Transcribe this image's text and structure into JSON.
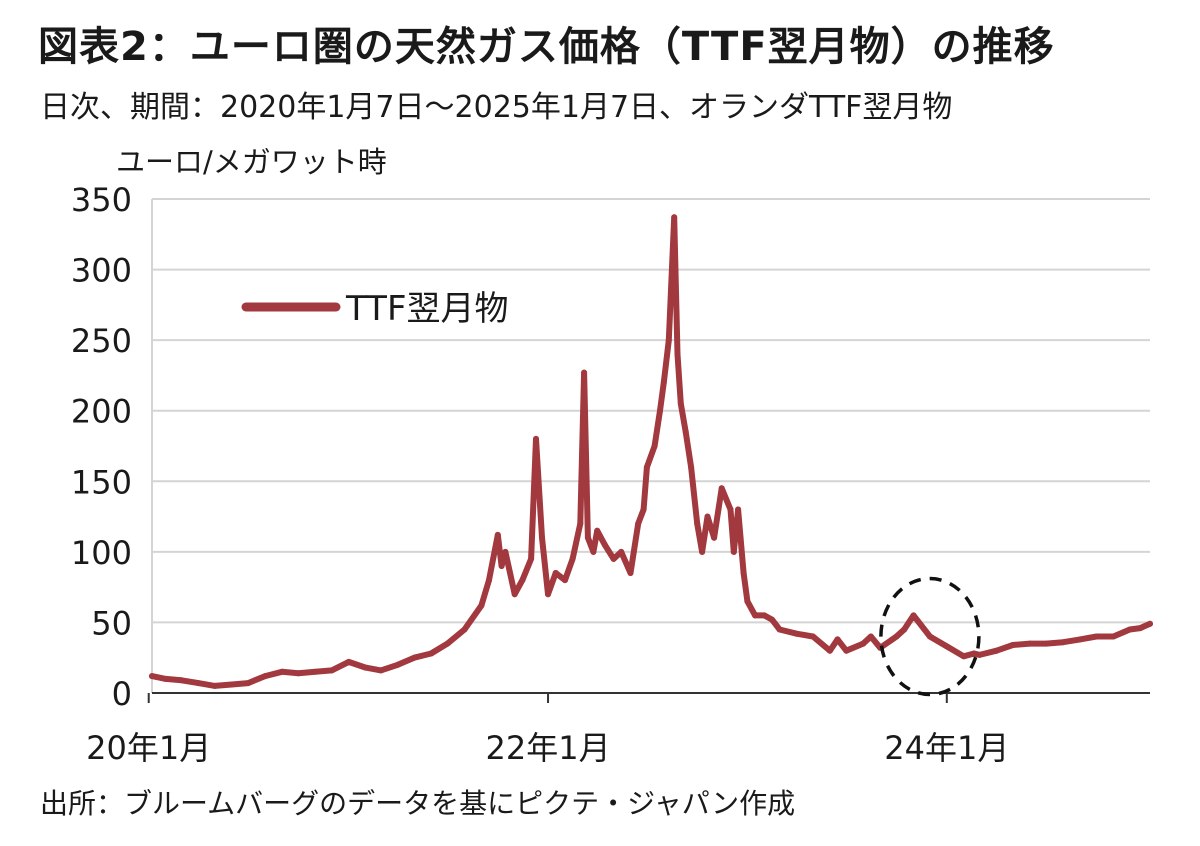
{
  "header": {
    "title": "図表2：ユーロ圏の天然ガス価格（TTF翌月物）の推移",
    "subtitle": "日次、期間：2020年1月7日～2025年1月7日、オランダTTF翌月物"
  },
  "footer": {
    "source": "出所：ブルームバーグのデータを基にピクテ・ジャパン作成"
  },
  "chart_data": {
    "type": "line",
    "title": "図表2：ユーロ圏の天然ガス価格（TTF翌月物）の推移",
    "ylabel": "ユーロ/メガワット時",
    "xlabel": "",
    "ylim": [
      0,
      350
    ],
    "yticks": [
      "0",
      "50",
      "100",
      "150",
      "200",
      "250",
      "300",
      "350"
    ],
    "xticks": [
      {
        "label": "20年1月",
        "date": "2020-01"
      },
      {
        "label": "22年1月",
        "date": "2022-01"
      },
      {
        "label": "24年1月",
        "date": "2024-01"
      }
    ],
    "xlim": [
      "2020-01-07",
      "2025-01-07"
    ],
    "grid": true,
    "legend": "upper-left",
    "annotations": [
      {
        "type": "dashed-circle",
        "center_date": "2023-12",
        "center_value": 40
      }
    ],
    "series": [
      {
        "name": "TTF翌月物",
        "color": "#A2393F",
        "x": [
          "2020-01-07",
          "2020-02-01",
          "2020-03-01",
          "2020-04-01",
          "2020-05-01",
          "2020-06-01",
          "2020-07-01",
          "2020-08-01",
          "2020-09-01",
          "2020-10-01",
          "2020-11-01",
          "2020-12-01",
          "2021-01-01",
          "2021-02-01",
          "2021-03-01",
          "2021-04-01",
          "2021-05-01",
          "2021-06-01",
          "2021-07-01",
          "2021-08-01",
          "2021-09-01",
          "2021-09-15",
          "2021-10-01",
          "2021-10-08",
          "2021-10-15",
          "2021-11-01",
          "2021-11-15",
          "2021-12-01",
          "2021-12-10",
          "2021-12-21",
          "2022-01-01",
          "2022-01-15",
          "2022-02-01",
          "2022-02-15",
          "2022-03-01",
          "2022-03-08",
          "2022-03-15",
          "2022-03-25",
          "2022-04-01",
          "2022-04-15",
          "2022-05-01",
          "2022-05-15",
          "2022-06-01",
          "2022-06-15",
          "2022-06-25",
          "2022-07-01",
          "2022-07-15",
          "2022-07-25",
          "2022-08-01",
          "2022-08-10",
          "2022-08-20",
          "2022-08-26",
          "2022-09-01",
          "2022-09-10",
          "2022-09-20",
          "2022-10-01",
          "2022-10-10",
          "2022-10-20",
          "2022-11-01",
          "2022-11-15",
          "2022-12-01",
          "2022-12-07",
          "2022-12-15",
          "2022-12-25",
          "2023-01-01",
          "2023-01-15",
          "2023-02-01",
          "2023-02-15",
          "2023-03-01",
          "2023-04-01",
          "2023-05-01",
          "2023-06-01",
          "2023-06-15",
          "2023-07-01",
          "2023-08-01",
          "2023-08-15",
          "2023-09-01",
          "2023-10-01",
          "2023-10-15",
          "2023-11-01",
          "2023-12-01",
          "2024-01-01",
          "2024-02-01",
          "2024-02-20",
          "2024-03-01",
          "2024-04-01",
          "2024-05-01",
          "2024-06-01",
          "2024-07-01",
          "2024-08-01",
          "2024-09-01",
          "2024-10-01",
          "2024-11-01",
          "2024-12-01",
          "2024-12-20",
          "2025-01-07"
        ],
        "values": [
          12,
          10,
          9,
          7,
          5,
          6,
          7,
          12,
          15,
          14,
          15,
          16,
          22,
          18,
          16,
          20,
          25,
          28,
          35,
          45,
          62,
          80,
          112,
          90,
          100,
          70,
          80,
          95,
          180,
          110,
          70,
          85,
          80,
          95,
          120,
          227,
          110,
          100,
          115,
          105,
          95,
          100,
          85,
          120,
          130,
          160,
          175,
          200,
          220,
          250,
          337,
          240,
          205,
          185,
          160,
          120,
          100,
          125,
          110,
          145,
          130,
          100,
          130,
          85,
          65,
          55,
          55,
          52,
          45,
          42,
          40,
          30,
          38,
          30,
          35,
          40,
          32,
          40,
          45,
          55,
          40,
          33,
          26,
          28,
          27,
          30,
          34,
          35,
          35,
          36,
          38,
          40,
          40,
          45,
          46,
          49
        ]
      }
    ]
  }
}
